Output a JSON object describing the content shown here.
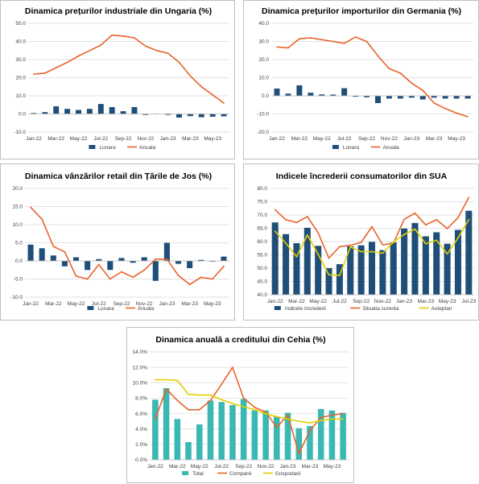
{
  "chart_data": [
    {
      "type": "bar",
      "title": "Dinamica prețurilor industriale din Ungaria (%)",
      "categories": [
        "Jan-22",
        "Feb-22",
        "Mar-22",
        "Apr-22",
        "May-22",
        "Jun-22",
        "Jul-22",
        "Aug-22",
        "Sep-22",
        "Oct-22",
        "Nov-22",
        "Dec-22",
        "Jan-23",
        "Feb-23",
        "Mar-23",
        "Apr-23",
        "May-23",
        "Jun-23"
      ],
      "x_tick_labels": [
        "Jan-22",
        "Mar-22",
        "May-22",
        "Jul-22",
        "Sep-22",
        "Nov-22",
        "Jan-23",
        "Mar-23",
        "May-23"
      ],
      "ylim": [
        -10,
        50
      ],
      "y_ticks": [
        -10,
        0,
        10,
        20,
        30,
        40,
        50
      ],
      "y_tick_labels": [
        "-10.0",
        "0.0",
        "10.0",
        "20.0",
        "30.0",
        "40.0",
        "50.0"
      ],
      "grid": true,
      "legend_position": "bottom",
      "series": [
        {
          "name": "Lunara",
          "type": "bar",
          "color": "#1f4e79",
          "values": [
            0.5,
            1.0,
            4.2,
            2.8,
            2.2,
            2.8,
            5.5,
            3.8,
            1.5,
            3.8,
            -0.5,
            0.2,
            -0.5,
            -2.0,
            -1.2,
            -1.8,
            -1.5,
            -1.3
          ]
        },
        {
          "name": "Anuala",
          "type": "line",
          "color": "#e8632b",
          "values": [
            22.0,
            22.5,
            25.5,
            28.5,
            32.0,
            35.0,
            38.0,
            43.5,
            43.0,
            42.0,
            37.5,
            35.0,
            33.5,
            28.5,
            21.0,
            15.0,
            10.5,
            6.0
          ]
        }
      ]
    },
    {
      "type": "bar",
      "title": "Dinamica prețurilor importurilor din Germania (%)",
      "categories": [
        "Jan-22",
        "Feb-22",
        "Mar-22",
        "Apr-22",
        "May-22",
        "Jun-22",
        "Jul-22",
        "Aug-22",
        "Sep-22",
        "Oct-22",
        "Nov-22",
        "Dec-22",
        "Jan-23",
        "Feb-23",
        "Mar-23",
        "Apr-23",
        "May-23",
        "Jun-23"
      ],
      "x_tick_labels": [
        "Jan-22",
        "Mar-22",
        "May-22",
        "Jul-22",
        "Sep-22",
        "Nov-22",
        "Jan-23",
        "Mar-23",
        "May-23"
      ],
      "ylim": [
        -20,
        40
      ],
      "y_ticks": [
        -20,
        -10,
        0,
        10,
        20,
        30,
        40
      ],
      "y_tick_labels": [
        "-20.0",
        "-10.0",
        "0.0",
        "10.0",
        "20.0",
        "30.0",
        "40.0"
      ],
      "grid": true,
      "legend_position": "bottom",
      "series": [
        {
          "name": "Lunara",
          "type": "bar",
          "color": "#1f4e79",
          "values": [
            4.0,
            1.2,
            5.8,
            1.7,
            0.8,
            0.7,
            4.2,
            -0.5,
            -0.8,
            -4.0,
            -1.5,
            -1.5,
            -1.0,
            -2.0,
            -1.0,
            -1.5,
            -1.5,
            -1.5
          ]
        },
        {
          "name": "Anuala",
          "type": "line",
          "color": "#e8632b",
          "values": [
            27.0,
            26.5,
            31.5,
            32.0,
            31.0,
            30.0,
            29.0,
            32.5,
            30.0,
            22.0,
            15.0,
            12.5,
            7.0,
            3.0,
            -4.0,
            -7.0,
            -9.5,
            -11.5
          ]
        }
      ]
    },
    {
      "type": "bar",
      "title": "Dinamica vânzărilor retail din Țările de Jos (%)",
      "categories": [
        "Jan-22",
        "Feb-22",
        "Mar-22",
        "Apr-22",
        "May-22",
        "Jun-22",
        "Jul-22",
        "Aug-22",
        "Sep-22",
        "Oct-22",
        "Nov-22",
        "Dec-22",
        "Jan-23",
        "Feb-23",
        "Mar-23",
        "Apr-23",
        "May-23",
        "Jun-23"
      ],
      "x_tick_labels": [
        "Jan-22",
        "Mar-22",
        "May-22",
        "Jul-22",
        "Sep-22",
        "Nov-22",
        "Jan-23",
        "Mar-23",
        "May-23"
      ],
      "ylim": [
        -10,
        20
      ],
      "y_ticks": [
        -10,
        -5,
        0,
        5,
        10,
        15,
        20
      ],
      "y_tick_labels": [
        "-10.0",
        "-5.0",
        "0.0",
        "5.0",
        "10.0",
        "15.0",
        "20.0"
      ],
      "grid": true,
      "legend_position": "bottom",
      "series": [
        {
          "name": "Lunara",
          "type": "bar",
          "color": "#1f4e79",
          "values": [
            4.5,
            3.5,
            1.5,
            -1.5,
            1.0,
            -2.5,
            0.5,
            -2.5,
            0.8,
            -0.5,
            1.0,
            -5.5,
            5.0,
            -0.8,
            -2.0,
            0.3,
            -0.2,
            1.2
          ]
        },
        {
          "name": "Anuala",
          "type": "line",
          "color": "#e8632b",
          "values": [
            14.8,
            11.5,
            4.0,
            2.5,
            -4.2,
            -5.0,
            -1.0,
            -5.0,
            -3.0,
            -4.5,
            -2.5,
            0.5,
            0.5,
            -4.0,
            -6.5,
            -4.5,
            -5.0,
            -1.5
          ]
        }
      ]
    },
    {
      "type": "bar",
      "title": "Indicele încrederii consumatorilor din SUA",
      "categories": [
        "Jan-22",
        "Feb-22",
        "Mar-22",
        "Apr-22",
        "May-22",
        "Jun-22",
        "Jul-22",
        "Aug-22",
        "Sep-22",
        "Oct-22",
        "Nov-22",
        "Dec-22",
        "Jan-23",
        "Feb-23",
        "Mar-23",
        "Apr-23",
        "May-23",
        "Jun-23",
        "Jul-23"
      ],
      "x_tick_labels": [
        "Jan-22",
        "Mar-22",
        "May-22",
        "Jul-22",
        "Sep-22",
        "Nov-22",
        "Jan-23",
        "Mar-23",
        "May-23",
        "Jul-23"
      ],
      "ylim": [
        40,
        80
      ],
      "y_ticks": [
        40,
        45,
        50,
        55,
        60,
        65,
        70,
        75,
        80
      ],
      "y_tick_labels": [
        "40.0",
        "45.0",
        "50.0",
        "55.0",
        "60.0",
        "65.0",
        "70.0",
        "75.0",
        "80.0"
      ],
      "grid": true,
      "legend_position": "bottom",
      "series": [
        {
          "name": "Indicele încrederii",
          "type": "bar",
          "color": "#1f4e79",
          "values": [
            67.2,
            62.8,
            59.4,
            65.2,
            58.4,
            50.0,
            51.5,
            58.2,
            58.6,
            59.9,
            56.8,
            59.7,
            64.9,
            67.0,
            62.0,
            63.5,
            59.2,
            64.4,
            71.6
          ]
        },
        {
          "name": "Situatia curenta",
          "type": "line",
          "color": "#e8632b",
          "values": [
            72.0,
            68.2,
            67.2,
            69.4,
            63.3,
            53.8,
            58.1,
            58.6,
            59.7,
            65.6,
            58.8,
            59.4,
            68.4,
            70.7,
            66.3,
            68.2,
            64.9,
            69.0,
            76.6
          ]
        },
        {
          "name": "Asteptari",
          "type": "line",
          "color": "#e0d000",
          "values": [
            63.9,
            59.4,
            54.3,
            62.5,
            55.2,
            47.5,
            47.3,
            58.0,
            56.2,
            56.2,
            55.6,
            59.9,
            62.7,
            64.7,
            59.2,
            60.5,
            55.4,
            61.3,
            68.3
          ]
        }
      ]
    },
    {
      "type": "bar",
      "title": "Dinamica anuală a creditului din Cehia (%)",
      "categories": [
        "Jan-22",
        "Feb-22",
        "Mar-22",
        "Apr-22",
        "May-22",
        "Jun-22",
        "Jul-22",
        "Aug-22",
        "Sep-22",
        "Oct-22",
        "Nov-22",
        "Dec-22",
        "Jan-23",
        "Feb-23",
        "Mar-23",
        "Apr-23",
        "May-23",
        "Jun-23"
      ],
      "x_tick_labels": [
        "Jan-22",
        "Mar-22",
        "May-22",
        "Jul-22",
        "Sep-22",
        "Nov-22",
        "Jan-23",
        "Mar-23",
        "May-23"
      ],
      "ylim": [
        0,
        14
      ],
      "y_ticks": [
        0,
        2,
        4,
        6,
        8,
        10,
        12,
        14
      ],
      "y_tick_labels": [
        "0.0%",
        "2.0%",
        "4.0%",
        "6.0%",
        "8.0%",
        "10.0%",
        "12.0%",
        "14.0%"
      ],
      "grid": true,
      "legend_position": "bottom",
      "series": [
        {
          "name": "Total",
          "type": "bar",
          "color": "#3ab8b3",
          "values": [
            7.8,
            9.3,
            5.3,
            2.3,
            4.6,
            7.7,
            7.5,
            7.1,
            7.9,
            6.4,
            6.4,
            5.6,
            6.1,
            4.1,
            4.4,
            6.6,
            6.4,
            6.1
          ]
        },
        {
          "name": "Companii",
          "type": "line",
          "color": "#e8632b",
          "values": [
            5.3,
            9.2,
            7.7,
            6.5,
            6.5,
            7.7,
            9.8,
            12.0,
            8.0,
            6.8,
            6.2,
            4.2,
            5.8,
            0.8,
            3.8,
            5.5,
            5.8,
            6.0
          ]
        },
        {
          "name": "Gospodarii",
          "type": "line",
          "color": "#e0d000",
          "values": [
            10.4,
            10.4,
            10.3,
            8.5,
            8.4,
            8.4,
            7.8,
            7.3,
            6.9,
            6.5,
            6.0,
            5.6,
            5.3,
            5.0,
            4.8,
            5.1,
            5.3,
            5.3
          ]
        }
      ]
    }
  ]
}
